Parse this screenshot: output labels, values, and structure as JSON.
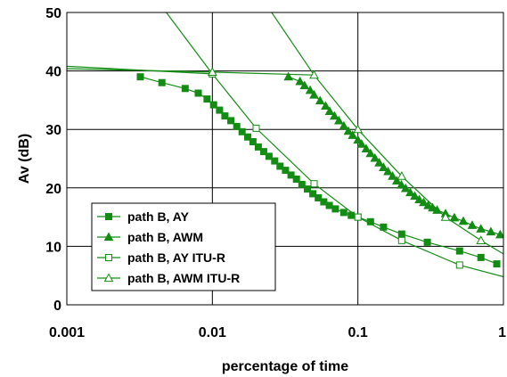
{
  "chart_data": {
    "type": "line",
    "title": "",
    "xlabel": "percentage of time",
    "ylabel": "Av  (dB)",
    "xscale": "log",
    "xlim": [
      0.001,
      1
    ],
    "ylim": [
      0,
      50
    ],
    "x_ticks": [
      "0.001",
      "0.01",
      "0.1",
      "1"
    ],
    "y_ticks": [
      "0",
      "10",
      "20",
      "30",
      "40",
      "50"
    ],
    "grid": true,
    "legend_position": "bottom-left",
    "line_color": "#138C13",
    "series": [
      {
        "name": "path B, AY",
        "marker": "filled-square",
        "x": [
          0.0032,
          0.0045,
          0.0065,
          0.008,
          0.0092,
          0.0102,
          0.0112,
          0.0122,
          0.0134,
          0.0147,
          0.016,
          0.0175,
          0.019,
          0.0207,
          0.0225,
          0.0245,
          0.0268,
          0.0292,
          0.0318,
          0.0347,
          0.0378,
          0.0412,
          0.045,
          0.049,
          0.0534,
          0.0583,
          0.0636,
          0.07,
          0.08,
          0.09,
          0.1,
          0.122,
          0.15,
          0.2,
          0.3,
          0.5,
          0.7,
          0.9
        ],
        "y": [
          39,
          38,
          37,
          36.2,
          35.2,
          34.2,
          33.3,
          32.3,
          31.5,
          30.5,
          29.6,
          28.7,
          27.9,
          27,
          26.2,
          25.4,
          24.6,
          23.7,
          23,
          22.2,
          21.5,
          20.6,
          19.8,
          19,
          18.3,
          17.6,
          17,
          16.4,
          15.8,
          15.3,
          15,
          14.2,
          13.3,
          12.1,
          10.7,
          9.2,
          8.1,
          7
        ]
      },
      {
        "name": "path B, AWM",
        "marker": "filled-triangle",
        "x": [
          0.0333,
          0.04,
          0.043,
          0.047,
          0.05,
          0.055,
          0.06,
          0.064,
          0.069,
          0.074,
          0.08,
          0.086,
          0.092,
          0.1,
          0.106,
          0.114,
          0.122,
          0.131,
          0.14,
          0.15,
          0.161,
          0.173,
          0.185,
          0.199,
          0.213,
          0.229,
          0.246,
          0.264,
          0.283,
          0.304,
          0.326,
          0.35,
          0.4,
          0.46,
          0.53,
          0.61,
          0.7,
          0.82,
          0.95
        ],
        "y": [
          39,
          38.2,
          37.5,
          36.7,
          35.9,
          34.9,
          34,
          33.1,
          32.3,
          31.5,
          30.6,
          29.7,
          29,
          28.2,
          27.5,
          26.7,
          25.9,
          25.1,
          24.3,
          23.5,
          22.8,
          22,
          21.2,
          20.5,
          19.9,
          19.2,
          18.6,
          18,
          17.5,
          17,
          16.6,
          16.2,
          15.6,
          14.9,
          14.3,
          13.6,
          13,
          12.5,
          12
        ]
      },
      {
        "name": "path B, AY ITU-R",
        "marker": "hollow-square",
        "x": [
          0.01,
          0.02,
          0.05,
          0.1,
          0.2,
          0.5
        ],
        "y": [
          39.5,
          30.2,
          20.7,
          15,
          11,
          6.8
        ]
      },
      {
        "name": "path B, AWM ITU-R",
        "marker": "hollow-triangle",
        "x": [
          0.01,
          0.05,
          0.1,
          0.2,
          0.4,
          0.7
        ],
        "y": [
          39.8,
          39.3,
          30,
          22,
          15,
          11
        ]
      }
    ],
    "extension_lines": [
      {
        "x": [
          0.001,
          0.01
        ],
        "y": [
          40.8,
          39.5
        ]
      },
      {
        "x": [
          0.001,
          0.01
        ],
        "y": [
          40.4,
          39.8
        ]
      },
      {
        "x": [
          0.0045,
          0.01
        ],
        "y": [
          51,
          39.5
        ]
      },
      {
        "x": [
          0.024,
          0.05
        ],
        "y": [
          51,
          39.3
        ]
      },
      {
        "x": [
          0.5,
          1
        ],
        "y": [
          6.8,
          4.8
        ]
      },
      {
        "x": [
          0.7,
          1
        ],
        "y": [
          11,
          8.7
        ]
      }
    ]
  }
}
